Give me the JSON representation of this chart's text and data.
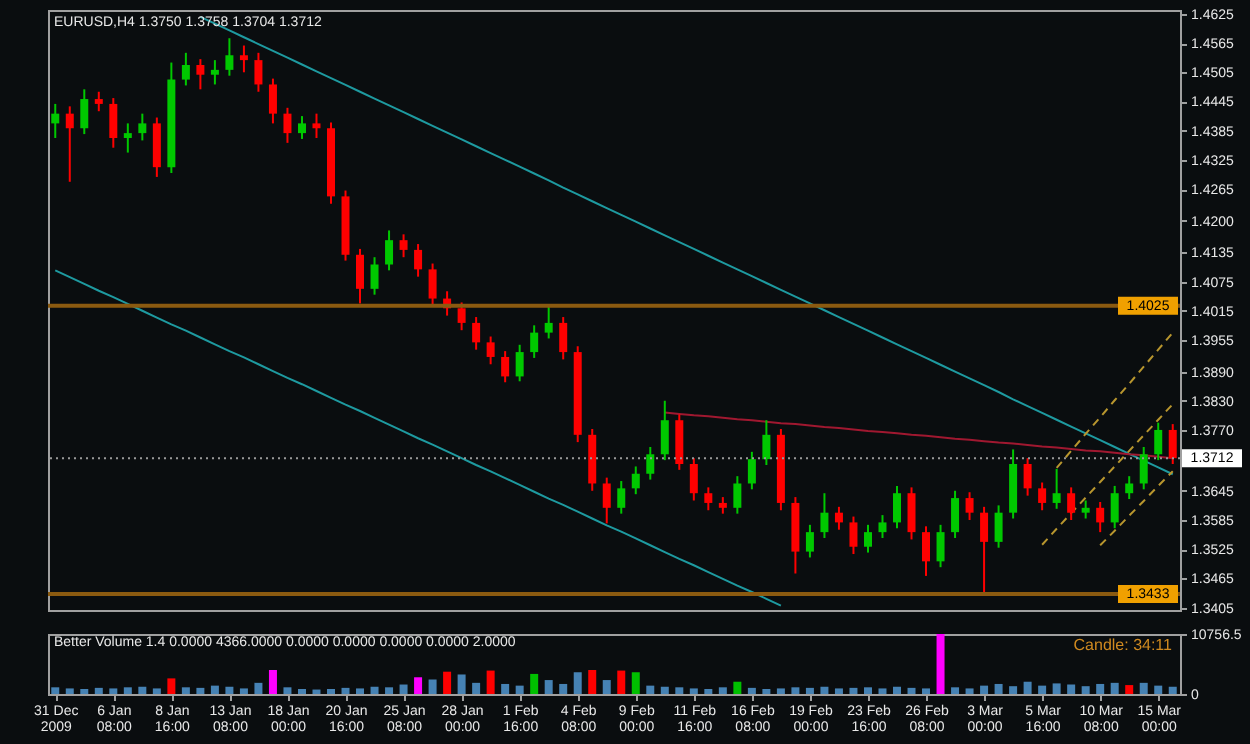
{
  "chart_data": [
    {
      "type": "candlestick",
      "title": "EURUSD,H4 1.3750 1.3758 1.3704 1.3712",
      "categories": [
        null,
        null,
        null,
        null,
        null,
        null,
        null,
        null,
        null,
        null,
        null,
        null,
        null,
        null,
        null,
        null,
        null,
        null,
        null,
        null,
        null,
        null,
        null,
        null,
        null,
        null,
        null,
        null,
        null,
        null,
        null,
        null,
        null,
        null,
        null,
        null,
        null,
        null,
        null,
        null,
        null,
        null,
        null,
        null,
        null,
        null,
        null,
        null,
        null,
        null,
        null,
        null,
        null,
        null,
        null,
        null,
        null,
        null,
        null,
        null,
        null,
        null,
        null,
        null,
        null,
        null,
        null,
        null,
        null,
        null,
        null,
        null,
        null,
        null,
        null,
        null,
        null,
        null
      ],
      "ohlc": [
        [
          1.44,
          1.444,
          1.437,
          1.442
        ],
        [
          1.442,
          1.4435,
          1.428,
          1.439
        ],
        [
          1.439,
          1.447,
          1.4378,
          1.445
        ],
        [
          1.445,
          1.4465,
          1.4425,
          1.444
        ],
        [
          1.444,
          1.4452,
          1.435,
          1.437
        ],
        [
          1.437,
          1.44,
          1.434,
          1.438
        ],
        [
          1.438,
          1.442,
          1.4365,
          1.44
        ],
        [
          1.44,
          1.4412,
          1.429,
          1.431
        ],
        [
          1.431,
          1.4525,
          1.4298,
          1.449
        ],
        [
          1.449,
          1.4545,
          1.4478,
          1.452
        ],
        [
          1.452,
          1.4532,
          1.447,
          1.45
        ],
        [
          1.45,
          1.453,
          1.448,
          1.451
        ],
        [
          1.451,
          1.4575,
          1.4498,
          1.454
        ],
        [
          1.454,
          1.456,
          1.4505,
          1.453
        ],
        [
          1.453,
          1.4545,
          1.4465,
          1.448
        ],
        [
          1.448,
          1.4492,
          1.44,
          1.442
        ],
        [
          1.442,
          1.4432,
          1.436,
          1.438
        ],
        [
          1.438,
          1.4415,
          1.4368,
          1.44
        ],
        [
          1.44,
          1.442,
          1.437,
          1.439
        ],
        [
          1.439,
          1.4402,
          1.4235,
          1.425
        ],
        [
          1.425,
          1.4262,
          1.4118,
          1.413
        ],
        [
          1.413,
          1.4142,
          1.403,
          1.406
        ],
        [
          1.406,
          1.4125,
          1.4048,
          1.411
        ],
        [
          1.411,
          1.418,
          1.4098,
          1.416
        ],
        [
          1.416,
          1.4172,
          1.4125,
          1.414
        ],
        [
          1.414,
          1.4152,
          1.4085,
          1.41
        ],
        [
          1.41,
          1.4112,
          1.4025,
          1.404
        ],
        [
          1.404,
          1.4055,
          1.4005,
          1.402
        ],
        [
          1.402,
          1.4032,
          1.3975,
          1.399
        ],
        [
          1.399,
          1.4002,
          1.3935,
          1.395
        ],
        [
          1.395,
          1.3962,
          1.3905,
          1.392
        ],
        [
          1.392,
          1.3932,
          1.3868,
          1.388
        ],
        [
          1.388,
          1.3945,
          1.387,
          1.393
        ],
        [
          1.393,
          1.3985,
          1.3918,
          1.397
        ],
        [
          1.397,
          1.4025,
          1.3958,
          1.399
        ],
        [
          1.399,
          1.4002,
          1.3915,
          1.393
        ],
        [
          1.393,
          1.3942,
          1.3745,
          1.376
        ],
        [
          1.376,
          1.3772,
          1.3645,
          1.366
        ],
        [
          1.366,
          1.3672,
          1.3578,
          1.361
        ],
        [
          1.361,
          1.3665,
          1.3598,
          1.365
        ],
        [
          1.365,
          1.3695,
          1.3638,
          1.368
        ],
        [
          1.368,
          1.3735,
          1.3668,
          1.372
        ],
        [
          1.372,
          1.383,
          1.3708,
          1.379
        ],
        [
          1.379,
          1.3802,
          1.3688,
          1.37
        ],
        [
          1.37,
          1.3712,
          1.3625,
          1.364
        ],
        [
          1.364,
          1.3652,
          1.3605,
          1.362
        ],
        [
          1.362,
          1.3632,
          1.3598,
          1.361
        ],
        [
          1.361,
          1.3675,
          1.3598,
          1.366
        ],
        [
          1.366,
          1.3725,
          1.3648,
          1.371
        ],
        [
          1.371,
          1.379,
          1.3698,
          1.376
        ],
        [
          1.376,
          1.3772,
          1.3605,
          1.362
        ],
        [
          1.362,
          1.3632,
          1.3475,
          1.352
        ],
        [
          1.352,
          1.3575,
          1.3508,
          1.356
        ],
        [
          1.356,
          1.364,
          1.3548,
          1.36
        ],
        [
          1.36,
          1.3612,
          1.3565,
          1.358
        ],
        [
          1.358,
          1.3592,
          1.3515,
          1.353
        ],
        [
          1.353,
          1.3575,
          1.3518,
          1.356
        ],
        [
          1.356,
          1.3595,
          1.3548,
          1.358
        ],
        [
          1.358,
          1.3655,
          1.3568,
          1.364
        ],
        [
          1.364,
          1.3652,
          1.3545,
          1.356
        ],
        [
          1.356,
          1.3572,
          1.347,
          1.35
        ],
        [
          1.35,
          1.3575,
          1.3488,
          1.356
        ],
        [
          1.356,
          1.3645,
          1.3548,
          1.363
        ],
        [
          1.363,
          1.3642,
          1.3585,
          1.36
        ],
        [
          1.36,
          1.3612,
          1.3433,
          1.354
        ],
        [
          1.354,
          1.3615,
          1.3528,
          1.36
        ],
        [
          1.36,
          1.373,
          1.3588,
          1.37
        ],
        [
          1.37,
          1.3712,
          1.3635,
          1.365
        ],
        [
          1.365,
          1.3662,
          1.3605,
          1.362
        ],
        [
          1.362,
          1.369,
          1.3608,
          1.364
        ],
        [
          1.364,
          1.3652,
          1.3585,
          1.36
        ],
        [
          1.36,
          1.3625,
          1.3588,
          1.361
        ],
        [
          1.361,
          1.3622,
          1.356,
          1.358
        ],
        [
          1.358,
          1.3655,
          1.3568,
          1.364
        ],
        [
          1.364,
          1.3675,
          1.3628,
          1.366
        ],
        [
          1.366,
          1.3735,
          1.3648,
          1.372
        ],
        [
          1.372,
          1.3785,
          1.3708,
          1.377
        ],
        [
          1.377,
          1.3782,
          1.37,
          1.3712
        ]
      ],
      "ylim": [
        1.34,
        1.4633
      ],
      "yticks": [
        1.3405,
        1.3465,
        1.3525,
        1.3585,
        1.3645,
        {
          "value": 1.377,
          "label": "1.3770"
        },
        {
          "value": 1.383,
          "label": "1.3830"
        },
        {
          "value": 1.389,
          "label": "1.3890"
        },
        1.3955,
        1.4015,
        1.4075,
        1.4135,
        {
          "value": 1.42,
          "label": "1.4200"
        },
        1.4265,
        1.4325,
        1.4385,
        1.4445,
        1.4505,
        1.4565,
        1.4625
      ],
      "tick_labels": "y",
      "grid": false,
      "series": [
        {
          "type": "line",
          "color": "#1e9aa0",
          "line_style": "solid",
          "values": [
            null,
            null,
            null,
            null,
            null,
            null,
            null,
            null,
            null,
            null,
            1.4619,
            1.4605,
            1.4591,
            1.4577,
            1.4563,
            1.4549,
            1.4535,
            1.4521,
            1.4507,
            1.4493,
            1.4479,
            1.4465,
            1.4451,
            1.4437,
            1.4423,
            1.4409,
            1.4395,
            1.4381,
            1.4367,
            1.4353,
            1.4339,
            1.4325,
            1.4311,
            1.4297,
            1.4283,
            1.4268,
            1.4254,
            1.424,
            1.4226,
            1.4212,
            1.4198,
            1.4184,
            1.417,
            1.4156,
            1.4142,
            1.4128,
            1.4114,
            1.41,
            1.4086,
            1.4072,
            1.4058,
            1.4044,
            1.403,
            1.4016,
            1.4002,
            1.3988,
            1.3974,
            1.396,
            1.3946,
            1.3932,
            1.3918,
            1.3904,
            1.389,
            1.3876,
            1.3862,
            1.3848,
            1.3833,
            1.3819,
            1.3805,
            1.3791,
            1.3777,
            1.3763,
            1.3749,
            1.3735,
            1.3721,
            1.3707,
            1.3693,
            1.3679
          ]
        },
        {
          "type": "line",
          "color": "#1e9aa0",
          "line_style": "solid",
          "values": [
            1.4098,
            1.4084,
            1.407,
            1.4056,
            1.4043,
            1.4029,
            1.4015,
            1.4001,
            1.3987,
            1.3974,
            1.396,
            1.3946,
            1.3932,
            1.3919,
            1.3905,
            1.3891,
            1.3877,
            1.3864,
            1.385,
            1.3836,
            1.3822,
            1.3809,
            1.3795,
            1.3781,
            1.3767,
            1.3753,
            1.374,
            1.3726,
            1.3712,
            1.3698,
            1.3685,
            1.3671,
            1.3657,
            1.3643,
            1.3629,
            1.3616,
            1.3602,
            1.3588,
            1.3574,
            1.3561,
            1.3547,
            1.3533,
            1.3519,
            1.3505,
            1.3492,
            1.3478,
            1.3464,
            1.345,
            1.3437,
            1.3423,
            1.3409,
            null,
            null,
            null,
            null,
            null,
            null,
            null,
            null,
            null,
            null,
            null,
            null,
            null,
            null,
            null,
            null,
            null,
            null,
            null,
            null,
            null,
            null,
            null,
            null,
            null,
            null,
            null
          ]
        },
        {
          "type": "line",
          "color": "#a01830",
          "line_style": "solid",
          "values": [
            null,
            null,
            null,
            null,
            null,
            null,
            null,
            null,
            null,
            null,
            null,
            null,
            null,
            null,
            null,
            null,
            null,
            null,
            null,
            null,
            null,
            null,
            null,
            null,
            null,
            null,
            null,
            null,
            null,
            null,
            null,
            null,
            null,
            null,
            null,
            null,
            null,
            null,
            null,
            null,
            null,
            null,
            1.3806,
            1.3803,
            1.38,
            1.3798,
            1.3795,
            1.3792,
            1.379,
            1.3787,
            1.3784,
            1.3782,
            1.3779,
            1.3776,
            1.3774,
            1.3771,
            1.3768,
            1.3766,
            1.3763,
            1.376,
            1.3758,
            1.3755,
            1.3752,
            1.375,
            1.3747,
            1.3744,
            1.3742,
            1.3739,
            1.3736,
            1.3734,
            1.3731,
            1.3728,
            1.3726,
            1.3723,
            1.372,
            1.3718,
            1.3715,
            1.3712
          ]
        },
        {
          "type": "line",
          "color": "#b8962e",
          "line_style": "dashed",
          "values": [
            null,
            null,
            null,
            null,
            null,
            null,
            null,
            null,
            null,
            null,
            null,
            null,
            null,
            null,
            null,
            null,
            null,
            null,
            null,
            null,
            null,
            null,
            null,
            null,
            null,
            null,
            null,
            null,
            null,
            null,
            null,
            null,
            null,
            null,
            null,
            null,
            null,
            null,
            null,
            null,
            null,
            null,
            null,
            null,
            null,
            null,
            null,
            null,
            null,
            null,
            null,
            null,
            null,
            null,
            null,
            null,
            null,
            null,
            null,
            null,
            null,
            null,
            null,
            null,
            null,
            null,
            null,
            null,
            null,
            1.3692,
            1.3727,
            1.3762,
            1.3796,
            1.3831,
            1.3865,
            1.39,
            1.3935,
            1.397
          ]
        },
        {
          "type": "line",
          "color": "#b8962e",
          "line_style": "dashed",
          "values": [
            null,
            null,
            null,
            null,
            null,
            null,
            null,
            null,
            null,
            null,
            null,
            null,
            null,
            null,
            null,
            null,
            null,
            null,
            null,
            null,
            null,
            null,
            null,
            null,
            null,
            null,
            null,
            null,
            null,
            null,
            null,
            null,
            null,
            null,
            null,
            null,
            null,
            null,
            null,
            null,
            null,
            null,
            null,
            null,
            null,
            null,
            null,
            null,
            null,
            null,
            null,
            null,
            null,
            null,
            null,
            null,
            null,
            null,
            null,
            null,
            null,
            null,
            null,
            null,
            null,
            null,
            null,
            null,
            1.3534,
            1.3567,
            1.3599,
            1.3631,
            1.3663,
            1.3695,
            1.3727,
            1.3759,
            1.3791,
            1.3823
          ]
        },
        {
          "type": "line",
          "color": "#b8962e",
          "line_style": "dashed",
          "values": [
            null,
            null,
            null,
            null,
            null,
            null,
            null,
            null,
            null,
            null,
            null,
            null,
            null,
            null,
            null,
            null,
            null,
            null,
            null,
            null,
            null,
            null,
            null,
            null,
            null,
            null,
            null,
            null,
            null,
            null,
            null,
            null,
            null,
            null,
            null,
            null,
            null,
            null,
            null,
            null,
            null,
            null,
            null,
            null,
            null,
            null,
            null,
            null,
            null,
            null,
            null,
            null,
            null,
            null,
            null,
            null,
            null,
            null,
            null,
            null,
            null,
            null,
            null,
            null,
            null,
            null,
            null,
            null,
            null,
            null,
            null,
            null,
            1.3533,
            1.3563,
            1.3594,
            1.3624,
            1.3655,
            1.3685
          ]
        }
      ],
      "ref_lines": [
        {
          "axis": "y",
          "value": 1.4025,
          "label": "1.4025",
          "color": "#8b5a10"
        },
        {
          "axis": "y",
          "value": 1.3433,
          "label": "1.3433",
          "color": "#8b5a10"
        },
        {
          "axis": "y",
          "value": 1.3712,
          "label": "1.3712",
          "color": "#9a9a9a",
          "line_style": "dotted"
        }
      ]
    },
    {
      "type": "bar",
      "title": "Better Volume 1.4 0.0000 4366.0000 0.0000 0.0000 0.0000 0.0000 2.0000",
      "categories": [
        "31 Dec 2009",
        null,
        null,
        null,
        "6 Jan 08:00",
        null,
        null,
        null,
        "8 Jan 16:00",
        null,
        null,
        null,
        "13 Jan 08:00",
        null,
        null,
        null,
        "18 Jan 00:00",
        null,
        null,
        null,
        "20 Jan 16:00",
        null,
        null,
        null,
        "25 Jan 08:00",
        null,
        null,
        null,
        "28 Jan 00:00",
        null,
        null,
        null,
        "1 Feb 16:00",
        null,
        null,
        null,
        "4 Feb 08:00",
        null,
        null,
        null,
        "9 Feb 00:00",
        null,
        null,
        null,
        "11 Feb 16:00",
        null,
        null,
        null,
        "16 Feb 08:00",
        null,
        null,
        null,
        "19 Feb 00:00",
        null,
        null,
        null,
        "23 Feb 16:00",
        null,
        null,
        null,
        "26 Feb 08:00",
        null,
        null,
        null,
        "3 Mar 00:00",
        null,
        null,
        null,
        "5 Mar 16:00",
        null,
        null,
        null,
        "10 Mar 08:00",
        null,
        null,
        null,
        "15 Mar 00:00",
        null
      ],
      "values": [
        1200,
        1000,
        900,
        1100,
        1000,
        1200,
        1300,
        1000,
        2800,
        1200,
        1100,
        1500,
        1300,
        1000,
        2000,
        4300,
        1200,
        900,
        800,
        900,
        1100,
        1000,
        1300,
        1200,
        1700,
        3000,
        2600,
        4000,
        3500,
        2000,
        4200,
        1800,
        1500,
        3600,
        2500,
        1800,
        3900,
        4300,
        2500,
        4200,
        3900,
        1500,
        1300,
        1200,
        1000,
        900,
        1200,
        2200,
        1100,
        900,
        1000,
        1200,
        1100,
        1300,
        1000,
        1100,
        1200,
        1000,
        1300,
        1100,
        1000,
        10756.5,
        1200,
        1000,
        1500,
        1800,
        1400,
        2200,
        1500,
        1900,
        1700,
        1400,
        1800,
        2000,
        1600,
        2000,
        1500,
        1300
      ],
      "colors": [
        "#4682b4",
        "#4682b4",
        "#4682b4",
        "#4682b4",
        "#4682b4",
        "#4682b4",
        "#4682b4",
        "#4682b4",
        "#ff0000",
        "#4682b4",
        "#4682b4",
        "#4682b4",
        "#4682b4",
        "#4682b4",
        "#4682b4",
        "#ff00ff",
        "#4682b4",
        "#4682b4",
        "#4682b4",
        "#4682b4",
        "#4682b4",
        "#4682b4",
        "#4682b4",
        "#4682b4",
        "#4682b4",
        "#ff00ff",
        "#4682b4",
        "#ff0000",
        "#4682b4",
        "#4682b4",
        "#ff0000",
        "#4682b4",
        "#4682b4",
        "#00c000",
        "#4682b4",
        "#4682b4",
        "#4682b4",
        "#ff0000",
        "#4682b4",
        "#ff0000",
        "#00c000",
        "#4682b4",
        "#4682b4",
        "#4682b4",
        "#4682b4",
        "#4682b4",
        "#4682b4",
        "#00c000",
        "#4682b4",
        "#4682b4",
        "#4682b4",
        "#4682b4",
        "#4682b4",
        "#4682b4",
        "#4682b4",
        "#4682b4",
        "#4682b4",
        "#4682b4",
        "#4682b4",
        "#4682b4",
        "#4682b4",
        "#ff00ff",
        "#4682b4",
        "#4682b4",
        "#4682b4",
        "#4682b4",
        "#4682b4",
        "#4682b4",
        "#4682b4",
        "#4682b4",
        "#4682b4",
        "#4682b4",
        "#4682b4",
        "#4682b4",
        "#ff0000",
        "#4682b4",
        "#4682b4",
        "#4682b4"
      ],
      "ylim": [
        0,
        10756.5
      ],
      "yticks": [
        0,
        {
          "value": 10756.5,
          "label": "10756.5"
        }
      ],
      "grid": false,
      "annotations": [
        "Candle: 34:11"
      ]
    }
  ]
}
